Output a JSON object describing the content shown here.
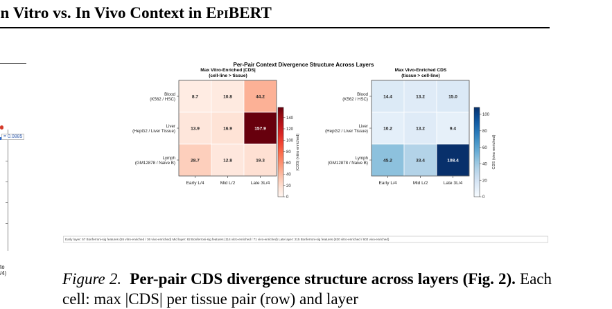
{
  "header": {
    "section_title_prefix": "in Vitro vs. In Vivo Context in E",
    "section_title_smallcaps": "PI",
    "section_title_suffix": "BERT"
  },
  "left_figure": {
    "annotation": "= 0.0885",
    "xlabel_line1": "te",
    "xlabel_line2": "/4)"
  },
  "figure": {
    "suptitle": "Per-Pair Context Divergence Structure Across Layers",
    "footnote": "Early layer: 57 Bonferroni-sig features (55 vitro-enriched / 36 vivo-enriched)  Mid layer: 82 Bonferroni-sig features (114 vitro-enriched / 71 vivo-enriched)  Late layer: 215 Bonferroni-sig features (820 vitro-enriched / 602 vivo-enriched)"
  },
  "caption": {
    "label": "Figure 2.",
    "bold_text": "Per-pair CDS divergence structure across layers (Fig. 2).",
    "body_text": "Each cell: max |CDS| per tissue pair (row) and layer"
  },
  "chart_data": [
    {
      "type": "heatmap",
      "title": "Max Vitro-Enriched |CDS|\n(cell-line > tissue)",
      "rows": [
        "Blood\n(K562 / HSC)",
        "Liver\n(HepG2 / Liver Tissue)",
        "Lymph\n(GM12878 / Naive B)"
      ],
      "columns": [
        "Early  L/4",
        "Mid  L/2",
        "Late  3L/4"
      ],
      "values": [
        [
          8.7,
          10.8,
          44.2
        ],
        [
          13.9,
          16.9,
          157.9
        ],
        [
          28.7,
          12.8,
          19.3
        ]
      ],
      "value_labels": [
        [
          "8.7",
          "10.8",
          "44.2"
        ],
        [
          "13.9",
          "16.9",
          "157.9"
        ],
        [
          "28.7",
          "12.8",
          "19.3"
        ]
      ],
      "colormap": "Reds",
      "vmin": 0,
      "vmax": 157.9,
      "colorbar_label": "|CDS| (vitro enriched)",
      "colorbar_ticks": [
        0,
        20,
        40,
        60,
        80,
        100,
        120,
        140
      ]
    },
    {
      "type": "heatmap",
      "title": "Max Vivo-Enriched CDS\n(tissue > cell-line)",
      "rows": [
        "Blood\n(K562 / HSC)",
        "Liver\n(HepG2 / Liver Tissue)",
        "Lymph\n(GM12878 / Naive B)"
      ],
      "columns": [
        "Early  L/4",
        "Mid  L/2",
        "Late  3L/4"
      ],
      "values": [
        [
          14.4,
          13.2,
          15.0
        ],
        [
          10.2,
          13.2,
          9.4
        ],
        [
          45.2,
          33.4,
          108.4
        ]
      ],
      "value_labels": [
        [
          "14.4",
          "13.2",
          "15.0"
        ],
        [
          "10.2",
          "13.2",
          "9.4"
        ],
        [
          "45.2",
          "33.4",
          "108.4"
        ]
      ],
      "colormap": "Blues",
      "vmin": 0,
      "vmax": 108.4,
      "colorbar_label": "CDS (vivo enriched)",
      "colorbar_ticks": [
        0,
        20,
        40,
        60,
        80,
        100
      ]
    }
  ]
}
